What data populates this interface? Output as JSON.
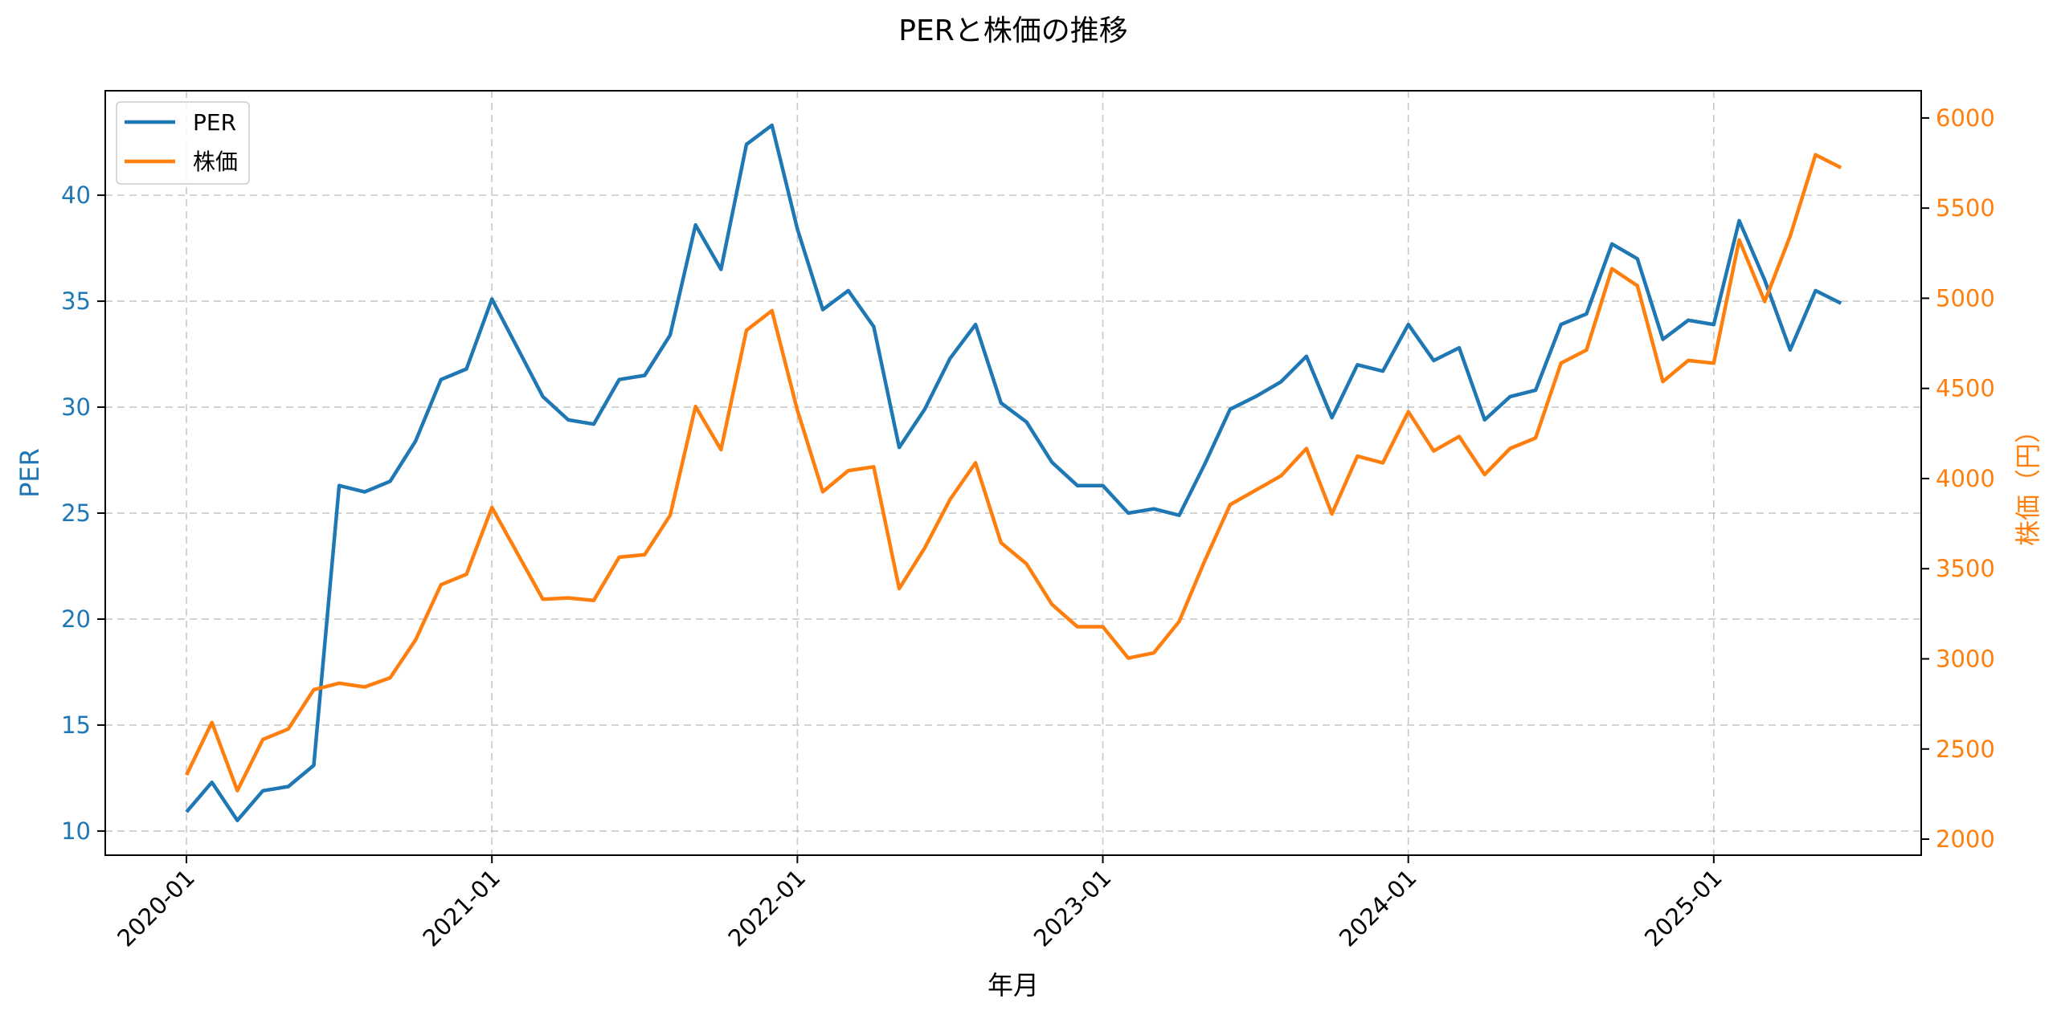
{
  "chart_data": {
    "type": "line",
    "title": "PERと株価の推移",
    "xlabel": "年月",
    "ylabel": "PER",
    "ylabel_right": "株価（円）",
    "x_tick_labels": [
      "2020-01",
      "2021-01",
      "2022-01",
      "2023-01",
      "2024-01",
      "2025-01"
    ],
    "x_tick_indices": [
      0,
      12,
      24,
      36,
      48,
      60
    ],
    "x": [
      "2020-01",
      "2020-02",
      "2020-03",
      "2020-04",
      "2020-05",
      "2020-06",
      "2020-07",
      "2020-08",
      "2020-09",
      "2020-10",
      "2020-11",
      "2020-12",
      "2021-01",
      "2021-02",
      "2021-03",
      "2021-04",
      "2021-05",
      "2021-06",
      "2021-07",
      "2021-08",
      "2021-09",
      "2021-10",
      "2021-11",
      "2021-12",
      "2022-01",
      "2022-02",
      "2022-03",
      "2022-04",
      "2022-05",
      "2022-06",
      "2022-07",
      "2022-08",
      "2022-09",
      "2022-10",
      "2022-11",
      "2022-12",
      "2023-01",
      "2023-02",
      "2023-03",
      "2023-04",
      "2023-05",
      "2023-06",
      "2023-07",
      "2023-08",
      "2023-09",
      "2023-10",
      "2023-11",
      "2023-12",
      "2024-01",
      "2024-02",
      "2024-03",
      "2024-04",
      "2024-05",
      "2024-06",
      "2024-07",
      "2024-08",
      "2024-09",
      "2024-10",
      "2024-11",
      "2024-12",
      "2025-01",
      "2025-02",
      "2025-03",
      "2025-04",
      "2025-05",
      "2025-06"
    ],
    "series": [
      {
        "name": "PER",
        "axis": "left",
        "color": "#1f77b4",
        "values": [
          10.9,
          12.3,
          10.5,
          11.9,
          12.1,
          13.1,
          26.3,
          26.0,
          26.5,
          28.4,
          31.3,
          31.8,
          35.1,
          32.8,
          30.5,
          29.4,
          29.2,
          31.3,
          31.5,
          33.4,
          38.6,
          36.5,
          42.4,
          43.3,
          38.4,
          34.6,
          35.5,
          33.8,
          28.1,
          29.9,
          32.3,
          33.9,
          30.2,
          29.3,
          27.4,
          26.3,
          26.3,
          25.0,
          25.2,
          24.9,
          27.3,
          29.9,
          30.5,
          31.2,
          32.4,
          29.5,
          32.0,
          31.7,
          33.9,
          32.2,
          32.8,
          29.4,
          30.5,
          30.8,
          33.9,
          34.4,
          37.7,
          37.0,
          33.2,
          34.1,
          33.9,
          38.8,
          36.0,
          32.7,
          35.5,
          34.9
        ]
      },
      {
        "name": "株価",
        "axis": "right",
        "color": "#ff7f0e",
        "values": [
          2356,
          2647,
          2269,
          2553,
          2611,
          2829,
          2865,
          2844,
          2895,
          3105,
          3411,
          3469,
          3840,
          3585,
          3331,
          3338,
          3324,
          3564,
          3578,
          3796,
          4400,
          4160,
          4822,
          4931,
          4378,
          3927,
          4044,
          4065,
          3389,
          3615,
          3884,
          4087,
          3644,
          3527,
          3302,
          3178,
          3178,
          3004,
          3033,
          3207,
          3542,
          3855,
          3935,
          4015,
          4167,
          3804,
          4124,
          4087,
          4371,
          4153,
          4233,
          4022,
          4167,
          4225,
          4640,
          4713,
          5164,
          5069,
          4538,
          4655,
          4640,
          5324,
          4982,
          5345,
          5796,
          5724
        ]
      }
    ],
    "ylim": [
      8.86,
      44.93
    ],
    "ylim_right": [
      1911,
      6151
    ],
    "y_ticks": [
      10,
      15,
      20,
      25,
      30,
      35,
      40
    ],
    "y_ticks_right": [
      2000,
      2500,
      3000,
      3500,
      4000,
      4500,
      5000,
      5500,
      6000
    ],
    "xlim_index": [
      -3.19,
      68.15
    ],
    "grid": true,
    "legend_position": "upper left",
    "legend": [
      "PER",
      "株価"
    ]
  }
}
